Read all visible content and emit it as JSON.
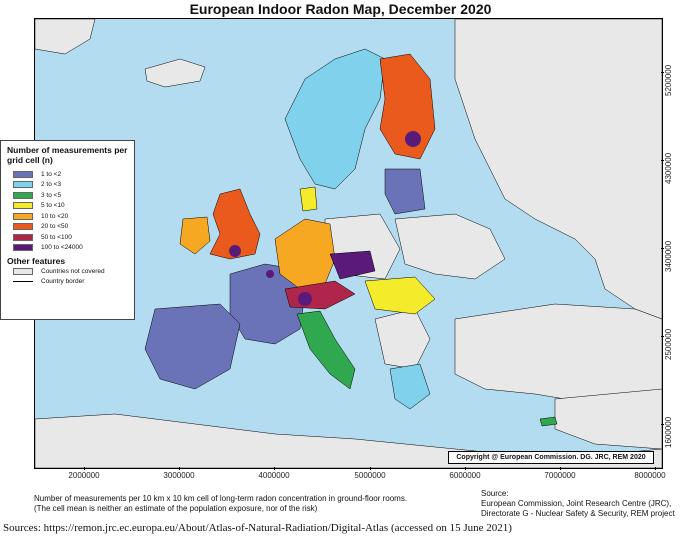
{
  "title": "European Indoor Radon Map, December 2020",
  "x_ticks": [
    {
      "label": "2000000",
      "value": 2000000
    },
    {
      "label": "3000000",
      "value": 3000000
    },
    {
      "label": "4000000",
      "value": 4000000
    },
    {
      "label": "5000000",
      "value": 5000000
    },
    {
      "label": "6000000",
      "value": 6000000
    },
    {
      "label": "7000000",
      "value": 7000000
    },
    {
      "label": "8000000",
      "value": 8000000
    }
  ],
  "y_ticks": [
    {
      "label": "5200000",
      "value": 5200000
    },
    {
      "label": "4300000",
      "value": 4300000
    },
    {
      "label": "3400000",
      "value": 3400000
    },
    {
      "label": "2500000",
      "value": 2500000
    },
    {
      "label": "1600000",
      "value": 1600000
    }
  ],
  "legend": {
    "heading": "Number of measurements per grid cell (n)",
    "classes": [
      {
        "label": "1 to <2",
        "color": "#6a73b8"
      },
      {
        "label": "2 to <3",
        "color": "#7fd1ec"
      },
      {
        "label": "3 to <5",
        "color": "#2fa84f"
      },
      {
        "label": "5 to <10",
        "color": "#f4ec2a"
      },
      {
        "label": "10 to <20",
        "color": "#f7a823"
      },
      {
        "label": "20 to <50",
        "color": "#ea5a1c"
      },
      {
        "label": "50 to <100",
        "color": "#b0264a"
      },
      {
        "label": "100 to <24000",
        "color": "#5a1a7a"
      }
    ],
    "other_heading": "Other features",
    "other_items": [
      {
        "label": "Countries not covered",
        "kind": "fill",
        "color": "#e8e8e8"
      },
      {
        "label": "Country border",
        "kind": "line",
        "color": "#000000"
      }
    ]
  },
  "colors": {
    "sea": "#b4dcf0",
    "not_covered": "#e8e8e8",
    "border": "#000000"
  },
  "copyright": "Copyright @ European Commission. DG. JRC, REM 2020",
  "note_lines": [
    "Number of measurements per 10 km x 10 km cell of long-term radon concentration in ground-floor rooms.",
    "(The cell mean is neither an estimate of the population exposure, nor of the risk)"
  ],
  "source_lines": [
    "Source:",
    "European Commission, Joint Research Centre (JRC),",
    "Directorate G - Nuclear Safety & Security, REM project"
  ],
  "sources_footer": "Sources: https://remon.jrc.ec.europa.eu/About/Atlas-of-Natural-Radiation/Digital-Atlas (accessed on 15 June 2021)"
}
